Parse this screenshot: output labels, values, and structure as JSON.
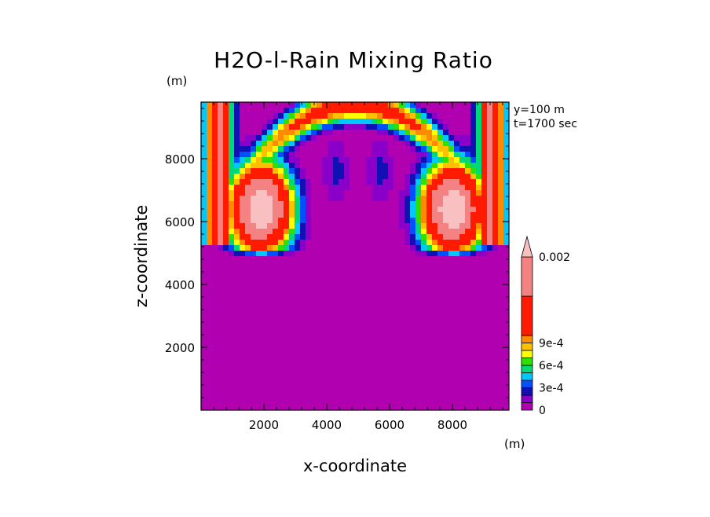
{
  "chart_data": {
    "type": "heatmap",
    "title": "H2O-l-Rain Mixing Ratio",
    "xlabel": "x-coordinate",
    "ylabel": "z-coordinate",
    "x_unit": "(m)",
    "y_unit": "(m)",
    "annotations": [
      "y=100 m",
      "t=1700 sec"
    ],
    "xlim": [
      0,
      9800
    ],
    "ylim": [
      0,
      9800
    ],
    "x_ticks": [
      2000,
      4000,
      6000,
      8000
    ],
    "y_ticks": [
      2000,
      4000,
      6000,
      8000
    ],
    "grid": false,
    "legend": "colorbar-right",
    "colorbar": {
      "tick_labels": [
        "0",
        "3e-4",
        "6e-4",
        "9e-4",
        "0.002"
      ],
      "tick_values": [
        0,
        0.0003,
        0.0006,
        0.0009,
        0.002
      ],
      "levels": [
        {
          "value": 0,
          "color": "#b000b0"
        },
        {
          "value": 0.0001,
          "color": "#8a00c8"
        },
        {
          "value": 0.0002,
          "color": "#1010b4"
        },
        {
          "value": 0.0003,
          "color": "#0050ff"
        },
        {
          "value": 0.0004,
          "color": "#00c8ff"
        },
        {
          "value": 0.0005,
          "color": "#00d878"
        },
        {
          "value": 0.0006,
          "color": "#30e000"
        },
        {
          "value": 0.0007,
          "color": "#ffff00"
        },
        {
          "value": 0.0008,
          "color": "#ffc000"
        },
        {
          "value": 0.0009,
          "color": "#ff8c00"
        },
        {
          "value": 0.001,
          "color": "#ff1a00"
        },
        {
          "value": 0.0015,
          "color": "#f48282"
        },
        {
          "value": 0.002,
          "color": "#f8c0c0"
        }
      ]
    },
    "fields": {
      "rain_cells": [
        {
          "x": 1900,
          "z": 6400,
          "peak": 0.0023
        },
        {
          "x": 8000,
          "z": 6400,
          "peak": 0.0023
        }
      ],
      "arch": {
        "x_center": 4900,
        "z_top": 9700,
        "peak": 0.0012
      },
      "lobes": [
        {
          "x": 4300,
          "z": 7600,
          "value": 0.00015
        },
        {
          "x": 5700,
          "z": 7600,
          "value": 0.00015
        }
      ]
    }
  }
}
